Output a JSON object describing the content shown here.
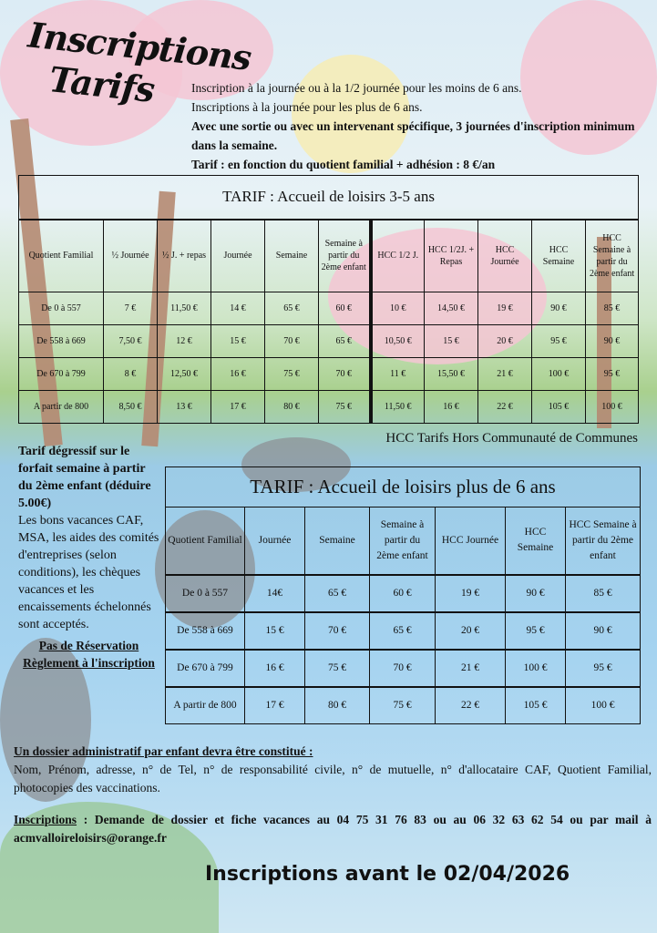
{
  "title": [
    "Inscriptions",
    "Tarifs"
  ],
  "intro": [
    "Inscription à la journée ou à la 1/2 journée pour les moins de 6 ans.",
    "Inscriptions à la journée pour les plus de 6 ans.",
    "Avec une sortie ou avec un intervenant spécifique, 3 journées d'inscription minimum dans la semaine.",
    "Tarif : en fonction du quotient familial + adhésion : 8 €/an"
  ],
  "table1": {
    "title": "TARIF : Accueil de loisirs 3-5 ans",
    "headers": [
      "Quotient Familial",
      "½ Journée",
      "½ J. + repas",
      "Journée",
      "Semaine",
      "Semaine à partir du 2ème enfant",
      "HCC 1/2 J.",
      "HCC 1/2J. + Repas",
      "HCC Journée",
      "HCC Semaine",
      "HCC Semaine à partir du 2ème enfant"
    ],
    "rows": [
      [
        "De 0 à 557",
        "7 €",
        "11,50 €",
        "14 €",
        "65 €",
        "60 €",
        "10 €",
        "14,50 €",
        "19 €",
        "90 €",
        "85 €"
      ],
      [
        "De 558 à 669",
        "7,50 €",
        "12 €",
        "15 €",
        "70 €",
        "65 €",
        "10,50 €",
        "15 €",
        "20 €",
        "95 €",
        "90 €"
      ],
      [
        "De 670 à 799",
        "8 €",
        "12,50 €",
        "16 €",
        "75 €",
        "70 €",
        "11 €",
        "15,50 €",
        "21 €",
        "100 €",
        "95 €"
      ],
      [
        "A partir de 800",
        "8,50 €",
        "13 €",
        "17 €",
        "80 €",
        "75 €",
        "11,50 €",
        "16 €",
        "22 €",
        "105 €",
        "100 €"
      ]
    ]
  },
  "hcc_note": "HCC Tarifs Hors Communauté de Communes",
  "side": {
    "bold": "Tarif dégressif sur le forfait semaine à partir du 2ème enfant (déduire 5.00€)",
    "text": "Les bons  vacances CAF, MSA, les aides des comités d'entreprises (selon conditions), les chèques vacances et les encaissements échelonnés sont acceptés.",
    "line1": "Pas de Réservation",
    "line2": "Règlement à l'inscription"
  },
  "table2": {
    "title": "TARIF : Accueil de loisirs plus de 6 ans",
    "headers": [
      "Quotient Familial",
      "Journée",
      "Semaine",
      "Semaine à partir du 2ème enfant",
      "HCC Journée",
      "HCC Semaine",
      "HCC Semaine à partir du 2ème enfant"
    ],
    "rows": [
      [
        "De 0 à 557",
        "14€",
        "65 €",
        "60 €",
        "19 €",
        "90 €",
        "85 €"
      ],
      [
        "De 558 à 669",
        "15 €",
        "70 €",
        "65 €",
        "20 €",
        "95 €",
        "90 €"
      ],
      [
        "De 670 à 799",
        "16 €",
        "75 €",
        "70 €",
        "21 €",
        "100 €",
        "95 €"
      ],
      [
        "A partir de 800",
        "17 €",
        "80 €",
        "75 €",
        "22 €",
        "105 €",
        "100 €"
      ]
    ]
  },
  "dossier": {
    "heading": "Un dossier administratif par enfant devra être constitué :",
    "text": "Nom, Prénom, adresse, n° de Tel, n° de responsabilité civile, n° de mutuelle, n° d'allocataire CAF, Quotient Familial, photocopies des vaccinations."
  },
  "inscriptions": {
    "label": "Inscriptions",
    "text": " : Demande de dossier et fiche vacances au 04 75 31 76 83 ou au 06 32 63 62 54 ou par mail à acmvalloireloisirs@orange.fr"
  },
  "deadline": "Inscriptions avant le 02/04/2026"
}
